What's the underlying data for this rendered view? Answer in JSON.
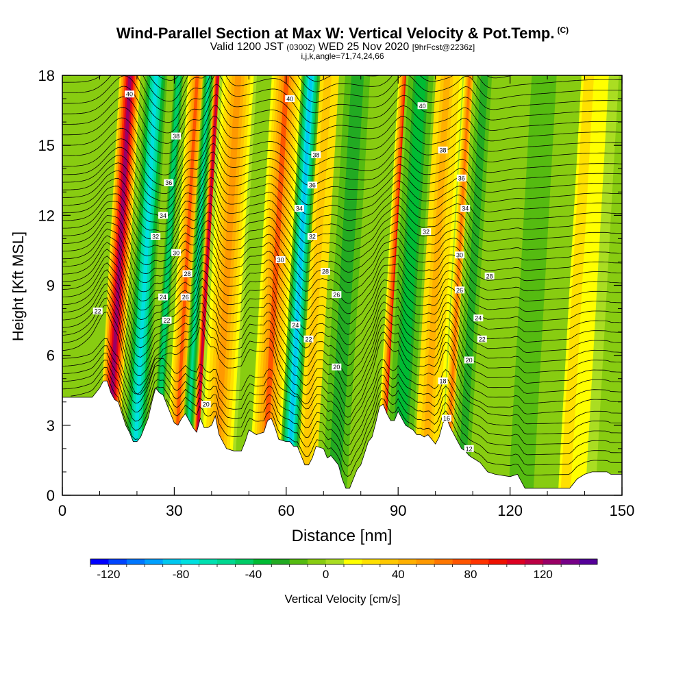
{
  "header": {
    "title": "Wind-Parallel Section at Max W: Vertical Velocity & Pot.Temp.",
    "copyright": "(C)",
    "valid_prefix": "Valid 1200 JST",
    "valid_utc": "(0300Z)",
    "valid_date": "WED 25 Nov 2020",
    "forecast": "[9hrFcst@2236z]",
    "indices": "i,j,k,angle=71,74,24,66"
  },
  "chart_data": {
    "type": "heatmap",
    "title": "Wind-Parallel Section at Max W: Vertical Velocity & Pot.Temp.",
    "xlabel": "Distance [nm]",
    "ylabel": "Height [Kft MSL]",
    "xlim": [
      0,
      150
    ],
    "ylim": [
      0,
      18
    ],
    "x_ticks": [
      "0",
      "30",
      "60",
      "90",
      "120",
      "150"
    ],
    "y_ticks": [
      "0",
      "3",
      "6",
      "9",
      "12",
      "15",
      "18"
    ],
    "colorbar": {
      "label": "Vertical Velocity [cm/s]",
      "min": -130,
      "max": 150,
      "step": 10,
      "tick_labels": [
        "-120",
        "-80",
        "-40",
        "0",
        "40",
        "80",
        "120"
      ],
      "tick_values": [
        -120,
        -80,
        -40,
        0,
        40,
        80,
        120
      ],
      "colors": [
        "#0000ff",
        "#0044ff",
        "#0077ff",
        "#00a0ff",
        "#00c8f0",
        "#00e0e0",
        "#00e0b0",
        "#00d890",
        "#00cc66",
        "#00bb33",
        "#22aa22",
        "#55bb11",
        "#88cc11",
        "#aadd22",
        "#ffff00",
        "#ffe000",
        "#ffc800",
        "#ffb000",
        "#ff9900",
        "#ff7700",
        "#ff5500",
        "#ff3300",
        "#ee1100",
        "#dd0022",
        "#bb0044",
        "#990066",
        "#770088",
        "#550099"
      ]
    },
    "updrafts": [
      {
        "x": 15,
        "width": 2.8,
        "w": 120
      },
      {
        "x": 33,
        "width": 2.5,
        "w": 70
      },
      {
        "x": 38.5,
        "width": 1.3,
        "w": 110
      },
      {
        "x": 44,
        "width": 5,
        "w": 50
      },
      {
        "x": 57,
        "width": 4,
        "w": 70
      },
      {
        "x": 68,
        "width": 6,
        "w": 30
      },
      {
        "x": 89,
        "width": 2,
        "w": 90
      },
      {
        "x": 100,
        "width": 5,
        "w": 40
      },
      {
        "x": 106,
        "width": 1.5,
        "w": 60
      },
      {
        "x": 138,
        "width": 8,
        "w": 20
      }
    ],
    "downdrafts": [
      {
        "x": 22,
        "width": 3,
        "w": -80
      },
      {
        "x": 28,
        "width": 1.5,
        "w": -50
      },
      {
        "x": 36,
        "width": 1.5,
        "w": -60
      },
      {
        "x": 63.5,
        "width": 2.5,
        "w": -90
      },
      {
        "x": 76,
        "width": 5,
        "w": -30
      },
      {
        "x": 93,
        "width": 4,
        "w": -40
      },
      {
        "x": 110,
        "width": 3,
        "w": -30
      },
      {
        "x": 126,
        "width": 10,
        "w": -15
      }
    ],
    "terrain": [
      [
        0,
        4.2
      ],
      [
        8,
        4.2
      ],
      [
        9,
        4.4
      ],
      [
        10,
        4.6
      ],
      [
        11,
        4.9
      ],
      [
        12,
        4.9
      ],
      [
        13,
        4.4
      ],
      [
        14,
        4.1
      ],
      [
        15,
        4.0
      ],
      [
        16,
        3.5
      ],
      [
        17,
        3.0
      ],
      [
        18,
        2.7
      ],
      [
        19,
        2.3
      ],
      [
        20,
        2.3
      ],
      [
        21,
        2.5
      ],
      [
        22,
        2.9
      ],
      [
        23,
        3.3
      ],
      [
        24,
        4.0
      ],
      [
        25,
        4.6
      ],
      [
        26,
        4.4
      ],
      [
        27,
        4.3
      ],
      [
        28,
        3.9
      ],
      [
        29,
        3.5
      ],
      [
        30,
        3.1
      ],
      [
        31,
        3.0
      ],
      [
        32,
        3.3
      ],
      [
        33,
        3.5
      ],
      [
        34,
        3.2
      ],
      [
        35,
        2.9
      ],
      [
        36,
        2.7
      ],
      [
        37,
        3.3
      ],
      [
        38,
        2.9
      ],
      [
        39,
        2.9
      ],
      [
        40,
        3.0
      ],
      [
        41,
        3.4
      ],
      [
        42,
        2.6
      ],
      [
        43,
        2.3
      ],
      [
        44,
        2.0
      ],
      [
        46,
        1.9
      ],
      [
        48,
        1.9
      ],
      [
        49,
        2.3
      ],
      [
        50,
        2.8
      ],
      [
        52,
        2.6
      ],
      [
        54,
        2.7
      ],
      [
        55,
        3.2
      ],
      [
        56,
        3.3
      ],
      [
        57,
        2.9
      ],
      [
        58,
        2.4
      ],
      [
        60,
        2.3
      ],
      [
        61,
        2.3
      ],
      [
        62,
        2.1
      ],
      [
        63,
        2.1
      ],
      [
        64,
        1.7
      ],
      [
        65,
        1.3
      ],
      [
        66,
        1.3
      ],
      [
        67,
        1.6
      ],
      [
        68,
        2.1
      ],
      [
        70,
        2.0
      ],
      [
        71,
        1.6
      ],
      [
        72,
        1.7
      ],
      [
        74,
        1.3
      ],
      [
        75,
        0.7
      ],
      [
        76,
        0.3
      ],
      [
        77,
        0.3
      ],
      [
        78,
        0.7
      ],
      [
        79,
        1.1
      ],
      [
        80,
        1.3
      ],
      [
        81,
        1.8
      ],
      [
        82,
        2.3
      ],
      [
        83,
        2.5
      ],
      [
        84,
        3.1
      ],
      [
        85,
        3.8
      ],
      [
        86,
        3.9
      ],
      [
        87,
        3.5
      ],
      [
        88,
        3.2
      ],
      [
        89,
        3.2
      ],
      [
        90,
        3.6
      ],
      [
        91,
        3.3
      ],
      [
        92,
        3.0
      ],
      [
        93,
        2.9
      ],
      [
        94,
        2.8
      ],
      [
        95,
        2.6
      ],
      [
        96,
        2.6
      ],
      [
        97,
        2.5
      ],
      [
        98,
        2.6
      ],
      [
        99,
        2.4
      ],
      [
        100,
        2.2
      ],
      [
        101,
        2.5
      ],
      [
        102,
        3.1
      ],
      [
        103,
        3.3
      ],
      [
        104,
        2.9
      ],
      [
        105,
        2.6
      ],
      [
        106,
        2.3
      ],
      [
        107,
        2.0
      ],
      [
        108,
        1.9
      ],
      [
        109,
        1.7
      ],
      [
        110,
        1.6
      ],
      [
        112,
        1.4
      ],
      [
        114,
        1.0
      ],
      [
        116,
        0.9
      ],
      [
        120,
        0.8
      ],
      [
        122,
        0.9
      ],
      [
        123,
        0.6
      ],
      [
        124,
        0.3
      ],
      [
        128,
        0.3
      ],
      [
        130,
        0.3
      ],
      [
        132,
        0.3
      ],
      [
        136,
        0.3
      ],
      [
        138,
        0.7
      ],
      [
        140,
        0.9
      ],
      [
        142,
        1.0
      ],
      [
        145,
        1.0
      ],
      [
        146,
        1.0
      ],
      [
        147,
        0.9
      ],
      [
        148,
        0.9
      ],
      [
        150,
        0.9
      ]
    ],
    "theta_contours": {
      "unit": "°C",
      "labels": [
        {
          "text": "40",
          "x": 18,
          "y": 17.2
        },
        {
          "text": "38",
          "x": 30.5,
          "y": 15.4
        },
        {
          "text": "36",
          "x": 28.5,
          "y": 13.4
        },
        {
          "text": "34",
          "x": 27,
          "y": 12.0
        },
        {
          "text": "32",
          "x": 25,
          "y": 11.1
        },
        {
          "text": "30",
          "x": 30.5,
          "y": 10.4
        },
        {
          "text": "28",
          "x": 33.5,
          "y": 9.5
        },
        {
          "text": "26",
          "x": 33,
          "y": 8.5
        },
        {
          "text": "24",
          "x": 27,
          "y": 8.5
        },
        {
          "text": "22",
          "x": 28,
          "y": 7.5
        },
        {
          "text": "22",
          "x": 9.5,
          "y": 7.9
        },
        {
          "text": "20",
          "x": 38.5,
          "y": 3.9
        },
        {
          "text": "40",
          "x": 61,
          "y": 17.0
        },
        {
          "text": "38",
          "x": 68,
          "y": 14.6
        },
        {
          "text": "36",
          "x": 67,
          "y": 13.3
        },
        {
          "text": "34",
          "x": 63.5,
          "y": 12.3
        },
        {
          "text": "32",
          "x": 67,
          "y": 11.1
        },
        {
          "text": "30",
          "x": 58.5,
          "y": 10.1
        },
        {
          "text": "28",
          "x": 70.5,
          "y": 9.6
        },
        {
          "text": "26",
          "x": 73.5,
          "y": 8.6
        },
        {
          "text": "24",
          "x": 62.5,
          "y": 7.3
        },
        {
          "text": "22",
          "x": 66,
          "y": 6.7
        },
        {
          "text": "20",
          "x": 73.5,
          "y": 5.5
        },
        {
          "text": "40",
          "x": 96.5,
          "y": 16.7
        },
        {
          "text": "38",
          "x": 102,
          "y": 14.8
        },
        {
          "text": "36",
          "x": 107,
          "y": 13.6
        },
        {
          "text": "34",
          "x": 108,
          "y": 12.3
        },
        {
          "text": "32",
          "x": 97.5,
          "y": 11.3
        },
        {
          "text": "30",
          "x": 106.5,
          "y": 10.3
        },
        {
          "text": "28",
          "x": 114.5,
          "y": 9.4
        },
        {
          "text": "26",
          "x": 106.5,
          "y": 8.8
        },
        {
          "text": "24",
          "x": 111.5,
          "y": 7.6
        },
        {
          "text": "22",
          "x": 112.5,
          "y": 6.7
        },
        {
          "text": "20",
          "x": 109,
          "y": 5.8
        },
        {
          "text": "18",
          "x": 102,
          "y": 4.9
        },
        {
          "text": "16",
          "x": 103,
          "y": 3.3
        },
        {
          "text": "12",
          "x": 109,
          "y": 2.0
        }
      ]
    }
  }
}
